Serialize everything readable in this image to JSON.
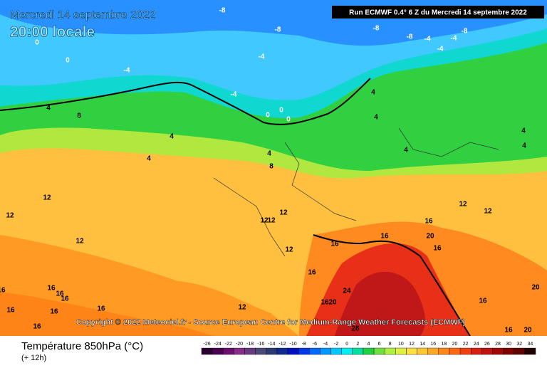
{
  "header": {
    "date": "Mercredi 14 septembre 2022",
    "time": "20:00 locale",
    "run": "Run ECMWF 0.4° 6 Z du Mercredi 14 septembre 2022"
  },
  "copyright": "Copyright © 2022 Meteociel.fr - Source European Centre for Medium-Range Weather Forecasts (ECMWF)",
  "footer": {
    "title": "Température 850hPa (°C)",
    "subtitle": "(+ 12h)"
  },
  "scale": {
    "values": [
      -26,
      -24,
      -22,
      -20,
      -18,
      -16,
      -14,
      -12,
      -10,
      -8,
      -6,
      -4,
      -2,
      0,
      2,
      4,
      6,
      8,
      10,
      12,
      14,
      16,
      18,
      20,
      22,
      24,
      26,
      28,
      30,
      32,
      34
    ],
    "colors": [
      "#2a0030",
      "#4a0050",
      "#6a1070",
      "#882a88",
      "#6a3a80",
      "#4a4a78",
      "#2a3a70",
      "#102a90",
      "#0010c0",
      "#0038e8",
      "#0068ff",
      "#0098ff",
      "#00c8ff",
      "#00f0f0",
      "#00e0a0",
      "#20d040",
      "#70e040",
      "#b0f040",
      "#e0f040",
      "#ffe040",
      "#ffc830",
      "#ffa820",
      "#ff8818",
      "#ff6810",
      "#f04010",
      "#d82010",
      "#c01010",
      "#a00808",
      "#800000",
      "#600000",
      "#200000"
    ]
  },
  "contour_labels": [
    -8,
    -8,
    -8,
    -8,
    -8,
    -4,
    -4,
    -4,
    -4,
    -4,
    -4,
    0,
    0,
    0,
    0,
    0,
    4,
    8,
    4,
    4,
    4,
    8,
    4,
    4,
    4,
    4,
    4,
    12,
    12,
    12,
    12,
    12,
    12,
    12,
    12,
    12,
    16,
    16,
    16,
    20,
    16,
    16,
    16,
    16,
    16,
    16,
    16,
    16,
    16,
    16,
    12,
    16,
    20,
    24,
    28,
    16,
    20,
    16,
    20
  ]
}
